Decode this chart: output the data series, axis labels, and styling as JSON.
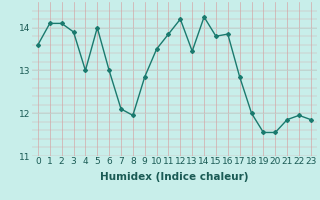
{
  "x": [
    0,
    1,
    2,
    3,
    4,
    5,
    6,
    7,
    8,
    9,
    10,
    11,
    12,
    13,
    14,
    15,
    16,
    17,
    18,
    19,
    20,
    21,
    22,
    23
  ],
  "y": [
    13.6,
    14.1,
    14.1,
    13.9,
    13.0,
    14.0,
    13.0,
    12.1,
    11.95,
    12.85,
    13.5,
    13.85,
    14.2,
    13.45,
    14.25,
    13.8,
    13.85,
    12.85,
    12.0,
    11.55,
    11.55,
    11.85,
    11.95,
    11.85
  ],
  "line_color": "#1a7a6e",
  "marker": "D",
  "marker_size": 2.0,
  "bg_color": "#c8eeea",
  "grid_color_v": "#d4a8a8",
  "grid_color_h": "#b8ddd8",
  "xlabel": "Humidex (Indice chaleur)",
  "ylim": [
    11,
    14.6
  ],
  "xlim": [
    -0.5,
    23.5
  ],
  "yticks": [
    11,
    12,
    13,
    14
  ],
  "xticks": [
    0,
    1,
    2,
    3,
    4,
    5,
    6,
    7,
    8,
    9,
    10,
    11,
    12,
    13,
    14,
    15,
    16,
    17,
    18,
    19,
    20,
    21,
    22,
    23
  ],
  "xlabel_fontsize": 7.5,
  "tick_fontsize": 6.5,
  "linewidth": 1.0
}
